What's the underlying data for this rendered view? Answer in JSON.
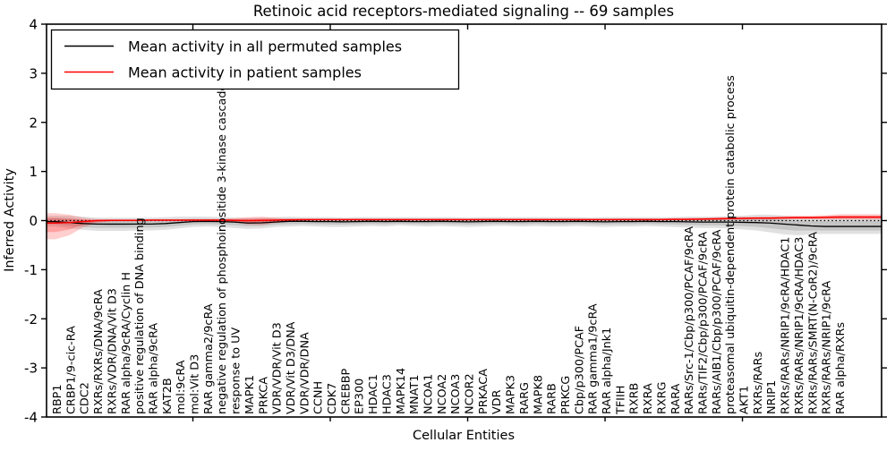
{
  "chart_data": {
    "type": "line",
    "title": "Retinoic acid receptors-mediated signaling -- 69 samples",
    "xlabel": "Cellular Entities",
    "ylabel": "Inferred Activity",
    "ylim": [
      -4,
      4
    ],
    "yticks": [
      -4,
      -3,
      -2,
      -1,
      0,
      1,
      2,
      3,
      4
    ],
    "x_tick_positions": [
      10,
      20,
      30,
      40,
      50
    ],
    "grid": false,
    "legend_position": "upper left",
    "zero_line": {
      "value": 0,
      "style": "dotted",
      "color": "#000000"
    },
    "categories": [
      "RBP1",
      "CRBP1/9-cic-RA",
      "CDC2",
      "RXRs/RXRs/DNA/9cRA",
      "RXRs/VDR/DNA/Vit D3",
      "RAR alpha/9cRA/Cyclin H",
      "positive regulation of DNA binding",
      "RAR alpha/9cRA",
      "KAT2B",
      "mol:9cRA",
      "mol:Vit D3",
      "RAR gamma2/9cRA",
      "negative regulation of phosphoinositide 3-kinase cascade",
      "response to UV",
      "MAPK1",
      "PRKCA",
      "VDR/VDR/Vit D3",
      "VDR/Vit D3/DNA",
      "VDR/VDR/DNA",
      "CCNH",
      "CDK7",
      "CREBBP",
      "EP300",
      "HDAC1",
      "HDAC3",
      "MAPK14",
      "MNAT1",
      "NCOA1",
      "NCOA2",
      "NCOA3",
      "NCOR2",
      "PRKACA",
      "VDR",
      "MAPK3",
      "RARG",
      "MAPK8",
      "RARB",
      "PRKCG",
      "Cbp/p300/PCAF",
      "RAR gamma1/9cRA",
      "RAR alpha/Jnk1",
      "TFIIH",
      "RXRB",
      "RXRA",
      "RXRG",
      "RARA",
      "RARs/Src-1/Cbp/p300/PCAF/9cRA",
      "RARs/TIF2/Cbp/p300/PCAF/9cRA",
      "RARs/AIB1/Cbp/p300/PCAF/9cRA",
      "proteasomal ubiquitin-dependent protein catabolic process",
      "AKT1",
      "RXRs/RARs",
      "NRIP1",
      "RXRs/RARs/NRIP1/9cRA/HDAC1",
      "RXRs/RARs/NRIP1/9cRA/HDAC3",
      "RXRs/RARs/SMRT(N-CoR2)/9cRA",
      "RXRs/RARs/NRIP1/9cRA",
      "RAR alpha/RXRs"
    ],
    "series": [
      {
        "name": "Mean activity in all permuted samples",
        "color": "#000000",
        "band_color": "#888888",
        "values": [
          -0.02,
          -0.04,
          -0.06,
          -0.07,
          -0.072,
          -0.072,
          -0.07,
          -0.07,
          -0.06,
          -0.04,
          -0.02,
          -0.015,
          -0.02,
          -0.03,
          -0.05,
          -0.045,
          -0.03,
          -0.015,
          -0.015,
          -0.02,
          -0.02,
          -0.025,
          -0.02,
          -0.015,
          -0.02,
          -0.015,
          -0.02,
          -0.02,
          -0.015,
          -0.02,
          -0.025,
          -0.02,
          -0.015,
          -0.02,
          -0.02,
          -0.015,
          -0.02,
          -0.02,
          -0.015,
          -0.02,
          -0.025,
          -0.02,
          -0.02,
          -0.015,
          -0.02,
          -0.02,
          -0.025,
          -0.03,
          -0.03,
          -0.03,
          -0.035,
          -0.04,
          -0.05,
          -0.07,
          -0.09,
          -0.11,
          -0.12,
          -0.12
        ],
        "band_upper": [
          0.1,
          0.1,
          0.08,
          0.06,
          0.06,
          0.06,
          0.06,
          0.06,
          0.07,
          0.08,
          0.08,
          0.08,
          0.07,
          0.06,
          0.05,
          0.06,
          0.07,
          0.08,
          0.07,
          0.07,
          0.07,
          0.06,
          0.07,
          0.07,
          0.07,
          0.07,
          0.07,
          0.07,
          0.07,
          0.07,
          0.06,
          0.07,
          0.07,
          0.07,
          0.07,
          0.07,
          0.07,
          0.07,
          0.07,
          0.06,
          0.07,
          0.07,
          0.07,
          0.07,
          0.07,
          0.07,
          0.08,
          0.08,
          0.08,
          0.09,
          0.1,
          0.12,
          0.12,
          0.1,
          0.08,
          0.08,
          0.08,
          0.09
        ],
        "band_lower": [
          -0.12,
          -0.16,
          -0.19,
          -0.21,
          -0.21,
          -0.21,
          -0.2,
          -0.2,
          -0.19,
          -0.16,
          -0.13,
          -0.12,
          -0.13,
          -0.15,
          -0.17,
          -0.16,
          -0.13,
          -0.12,
          -0.11,
          -0.12,
          -0.13,
          -0.13,
          -0.12,
          -0.11,
          -0.12,
          -0.1,
          -0.11,
          -0.12,
          -0.11,
          -0.12,
          -0.13,
          -0.12,
          -0.11,
          -0.11,
          -0.12,
          -0.11,
          -0.12,
          -0.12,
          -0.11,
          -0.12,
          -0.13,
          -0.12,
          -0.12,
          -0.11,
          -0.12,
          -0.13,
          -0.14,
          -0.15,
          -0.15,
          -0.16,
          -0.18,
          -0.2,
          -0.24,
          -0.28,
          -0.3,
          -0.28,
          -0.27,
          -0.27
        ]
      },
      {
        "name": "Mean activity in patient samples",
        "color": "#ff0000",
        "band_color": "#ff2222",
        "values": [
          -0.05,
          -0.04,
          -0.02,
          0.0,
          0.005,
          0.005,
          0.005,
          0.01,
          0.01,
          0.01,
          0.01,
          0.01,
          0.01,
          0.005,
          0.0,
          0.005,
          0.01,
          0.015,
          0.02,
          0.02,
          0.02,
          0.02,
          0.02,
          0.02,
          0.02,
          0.02,
          0.02,
          0.02,
          0.02,
          0.02,
          0.02,
          0.02,
          0.02,
          0.02,
          0.02,
          0.02,
          0.02,
          0.02,
          0.02,
          0.02,
          0.02,
          0.02,
          0.02,
          0.02,
          0.02,
          0.025,
          0.025,
          0.03,
          0.035,
          0.04,
          0.045,
          0.05,
          0.05,
          0.055,
          0.06,
          0.06,
          0.065,
          0.07
        ],
        "band_upper": [
          0.15,
          0.12,
          0.06,
          0.03,
          0.025,
          0.025,
          0.025,
          0.03,
          0.03,
          0.03,
          0.03,
          0.03,
          0.035,
          0.05,
          0.07,
          0.08,
          0.06,
          0.04,
          0.035,
          0.035,
          0.035,
          0.035,
          0.035,
          0.035,
          0.035,
          0.035,
          0.035,
          0.035,
          0.035,
          0.035,
          0.035,
          0.035,
          0.035,
          0.035,
          0.035,
          0.035,
          0.035,
          0.035,
          0.035,
          0.035,
          0.035,
          0.04,
          0.04,
          0.04,
          0.04,
          0.05,
          0.055,
          0.06,
          0.065,
          0.07,
          0.075,
          0.08,
          0.085,
          0.09,
          0.1,
          0.1,
          0.11,
          0.13
        ],
        "band_lower": [
          -0.38,
          -0.3,
          -0.14,
          -0.05,
          -0.02,
          -0.015,
          -0.015,
          -0.01,
          -0.01,
          -0.01,
          -0.01,
          -0.01,
          -0.015,
          -0.04,
          -0.08,
          -0.09,
          -0.05,
          -0.02,
          -0.005,
          0.0,
          0.0,
          0.0,
          0.0,
          0.0,
          0.0,
          0.0,
          0.0,
          0.0,
          0.0,
          0.0,
          0.0,
          0.0,
          0.0,
          0.0,
          0.0,
          0.0,
          0.0,
          0.0,
          0.0,
          0.0,
          0.0,
          0.005,
          0.005,
          0.005,
          0.005,
          0.005,
          0.005,
          0.01,
          0.01,
          0.015,
          0.015,
          0.02,
          0.02,
          0.025,
          0.025,
          0.025,
          0.02,
          0.02
        ]
      }
    ]
  }
}
